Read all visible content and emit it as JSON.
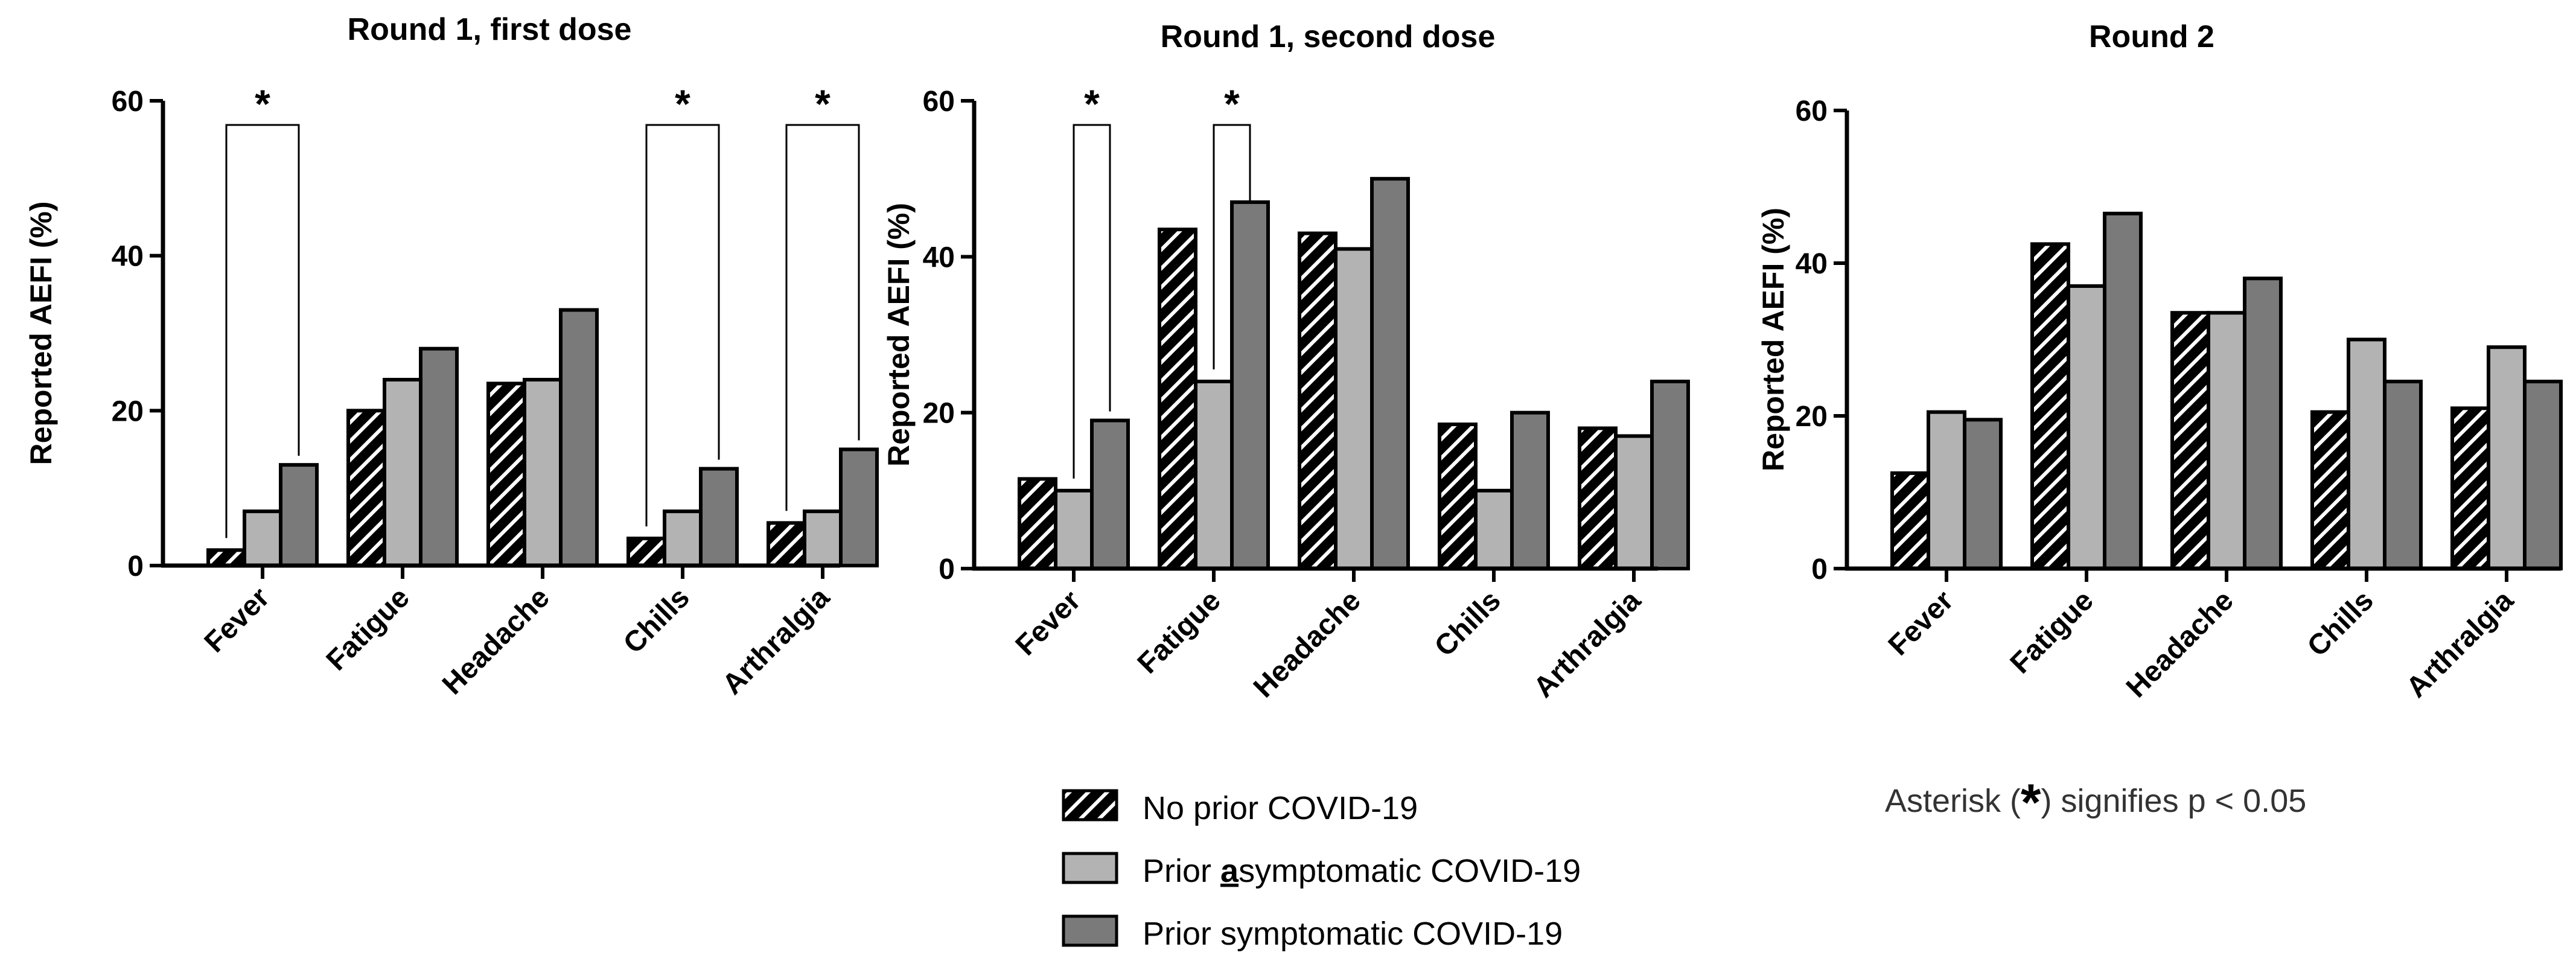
{
  "chart_data": [
    {
      "type": "bar",
      "title": "Round 1, first dose",
      "ylabel": "Reported AEFI (%)",
      "xlabel": "",
      "ylim": [
        0,
        60
      ],
      "yticks": [
        0,
        20,
        40,
        60
      ],
      "categories": [
        "Fever",
        "Fatigue",
        "Headache",
        "Chills",
        "Arthralgia"
      ],
      "series": [
        {
          "name": "No prior COVID-19",
          "values": [
            2,
            20,
            23.5,
            3.5,
            5.5
          ]
        },
        {
          "name": "Prior asymptomatic COVID-19",
          "values": [
            7,
            24,
            24,
            7,
            7
          ]
        },
        {
          "name": "Prior symptomatic COVID-19",
          "values": [
            13,
            28,
            33,
            12.5,
            15
          ]
        }
      ],
      "significance": [
        {
          "category": 0,
          "from_series": 0,
          "to_series": 2,
          "label": "*"
        },
        {
          "category": 3,
          "from_series": 0,
          "to_series": 2,
          "label": "*"
        },
        {
          "category": 4,
          "from_series": 0,
          "to_series": 2,
          "label": "*"
        }
      ]
    },
    {
      "type": "bar",
      "title": "Round 1, second dose",
      "ylabel": "Reported AEFI (%)",
      "xlabel": "",
      "ylim": [
        0,
        60
      ],
      "yticks": [
        0,
        20,
        40,
        60
      ],
      "categories": [
        "Fever",
        "Fatigue",
        "Headache",
        "Chills",
        "Arthralgia"
      ],
      "series": [
        {
          "name": "No prior COVID-19",
          "values": [
            11.5,
            43.5,
            43,
            18.5,
            18
          ]
        },
        {
          "name": "Prior asymptomatic COVID-19",
          "values": [
            10,
            24,
            41,
            10,
            17
          ]
        },
        {
          "name": "Prior symptomatic COVID-19",
          "values": [
            19,
            47,
            50,
            20,
            24
          ]
        }
      ],
      "significance": [
        {
          "category": 0,
          "from_series": 1,
          "to_series": 2,
          "label": "*"
        },
        {
          "category": 1,
          "from_series": 1,
          "to_series": 2,
          "label": "*"
        }
      ]
    },
    {
      "type": "bar",
      "title": "Round 2",
      "ylabel": "Reported AEFI (%)",
      "xlabel": "",
      "ylim": [
        0,
        60
      ],
      "yticks": [
        0,
        20,
        40,
        60
      ],
      "categories": [
        "Fever",
        "Fatigue",
        "Headache",
        "Chills",
        "Arthralgia"
      ],
      "series": [
        {
          "name": "No prior COVID-19",
          "values": [
            12.5,
            42.5,
            33.5,
            20.5,
            21
          ]
        },
        {
          "name": "Prior asymptomatic COVID-19",
          "values": [
            20.5,
            37,
            33.5,
            30,
            29
          ]
        },
        {
          "name": "Prior symptomatic COVID-19",
          "values": [
            19.5,
            46.5,
            38,
            24.5,
            24.5
          ]
        }
      ],
      "significance": []
    }
  ],
  "legend": {
    "items": [
      {
        "pre": "No prior COVID-19",
        "underlined": "",
        "post": "",
        "pattern": "hatched"
      },
      {
        "pre": "Prior ",
        "underlined": "a",
        "post": "symptomatic COVID-19",
        "pattern": "light"
      },
      {
        "pre": "Prior symptomatic COVID-19",
        "underlined": "",
        "post": "",
        "pattern": "dark"
      }
    ]
  },
  "note": {
    "pre": "Asterisk (",
    "symbol": "*",
    "post": ") signifies p < 0.05"
  },
  "colors": {
    "light_fill": "#b3b3b3",
    "dark_fill": "#7a7a7a",
    "hatch_bg": "#000000",
    "hatch_line": "#ffffff",
    "axis": "#000000",
    "bracket": "#000000"
  }
}
